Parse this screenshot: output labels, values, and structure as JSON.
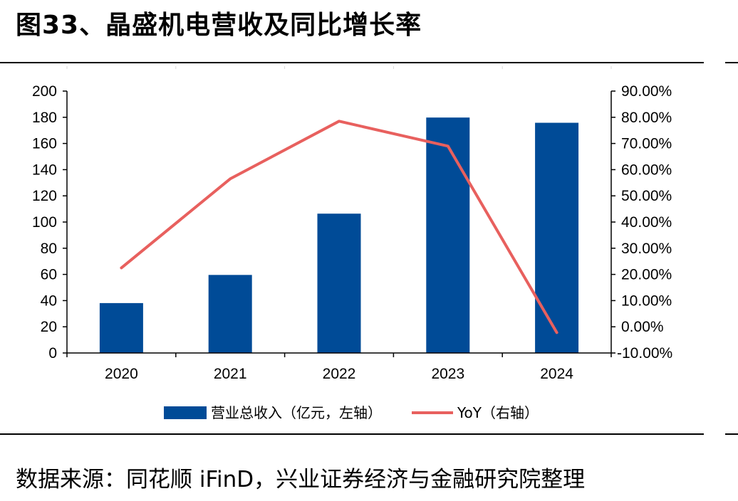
{
  "figure": {
    "title": "图33、晶盛机电营收及同比增长率",
    "source": "数据来源：同花顺 iFinD，兴业证券经济与金融研究院整理"
  },
  "chart_data": {
    "type": "bar",
    "title": "",
    "categories": [
      "2020",
      "2021",
      "2022",
      "2023",
      "2024"
    ],
    "series": [
      {
        "name": "营业总收入（亿元，左轴）",
        "type": "bar",
        "axis": "left",
        "color": "#004B97",
        "values": [
          38.1,
          59.6,
          106.4,
          179.8,
          175.8
        ]
      },
      {
        "name": "YoY（右轴）",
        "type": "line",
        "axis": "right",
        "color": "#E8605E",
        "values": [
          22.5,
          56.5,
          78.5,
          69.0,
          -2.2
        ]
      }
    ],
    "left_axis": {
      "ylim": [
        0,
        200
      ],
      "ticks": [
        0,
        20,
        40,
        60,
        80,
        100,
        120,
        140,
        160,
        180,
        200
      ],
      "tick_labels": [
        "0",
        "20",
        "40",
        "60",
        "80",
        "100",
        "120",
        "140",
        "160",
        "180",
        "200"
      ]
    },
    "right_axis": {
      "ylim": [
        -10,
        90
      ],
      "ticks": [
        -10,
        0,
        10,
        20,
        30,
        40,
        50,
        60,
        70,
        80,
        90
      ],
      "tick_labels": [
        "-10.00%",
        "0.00%",
        "10.00%",
        "20.00%",
        "30.00%",
        "40.00%",
        "50.00%",
        "60.00%",
        "70.00%",
        "80.00%",
        "90.00%"
      ]
    },
    "grid": false,
    "legend": "bottom"
  }
}
